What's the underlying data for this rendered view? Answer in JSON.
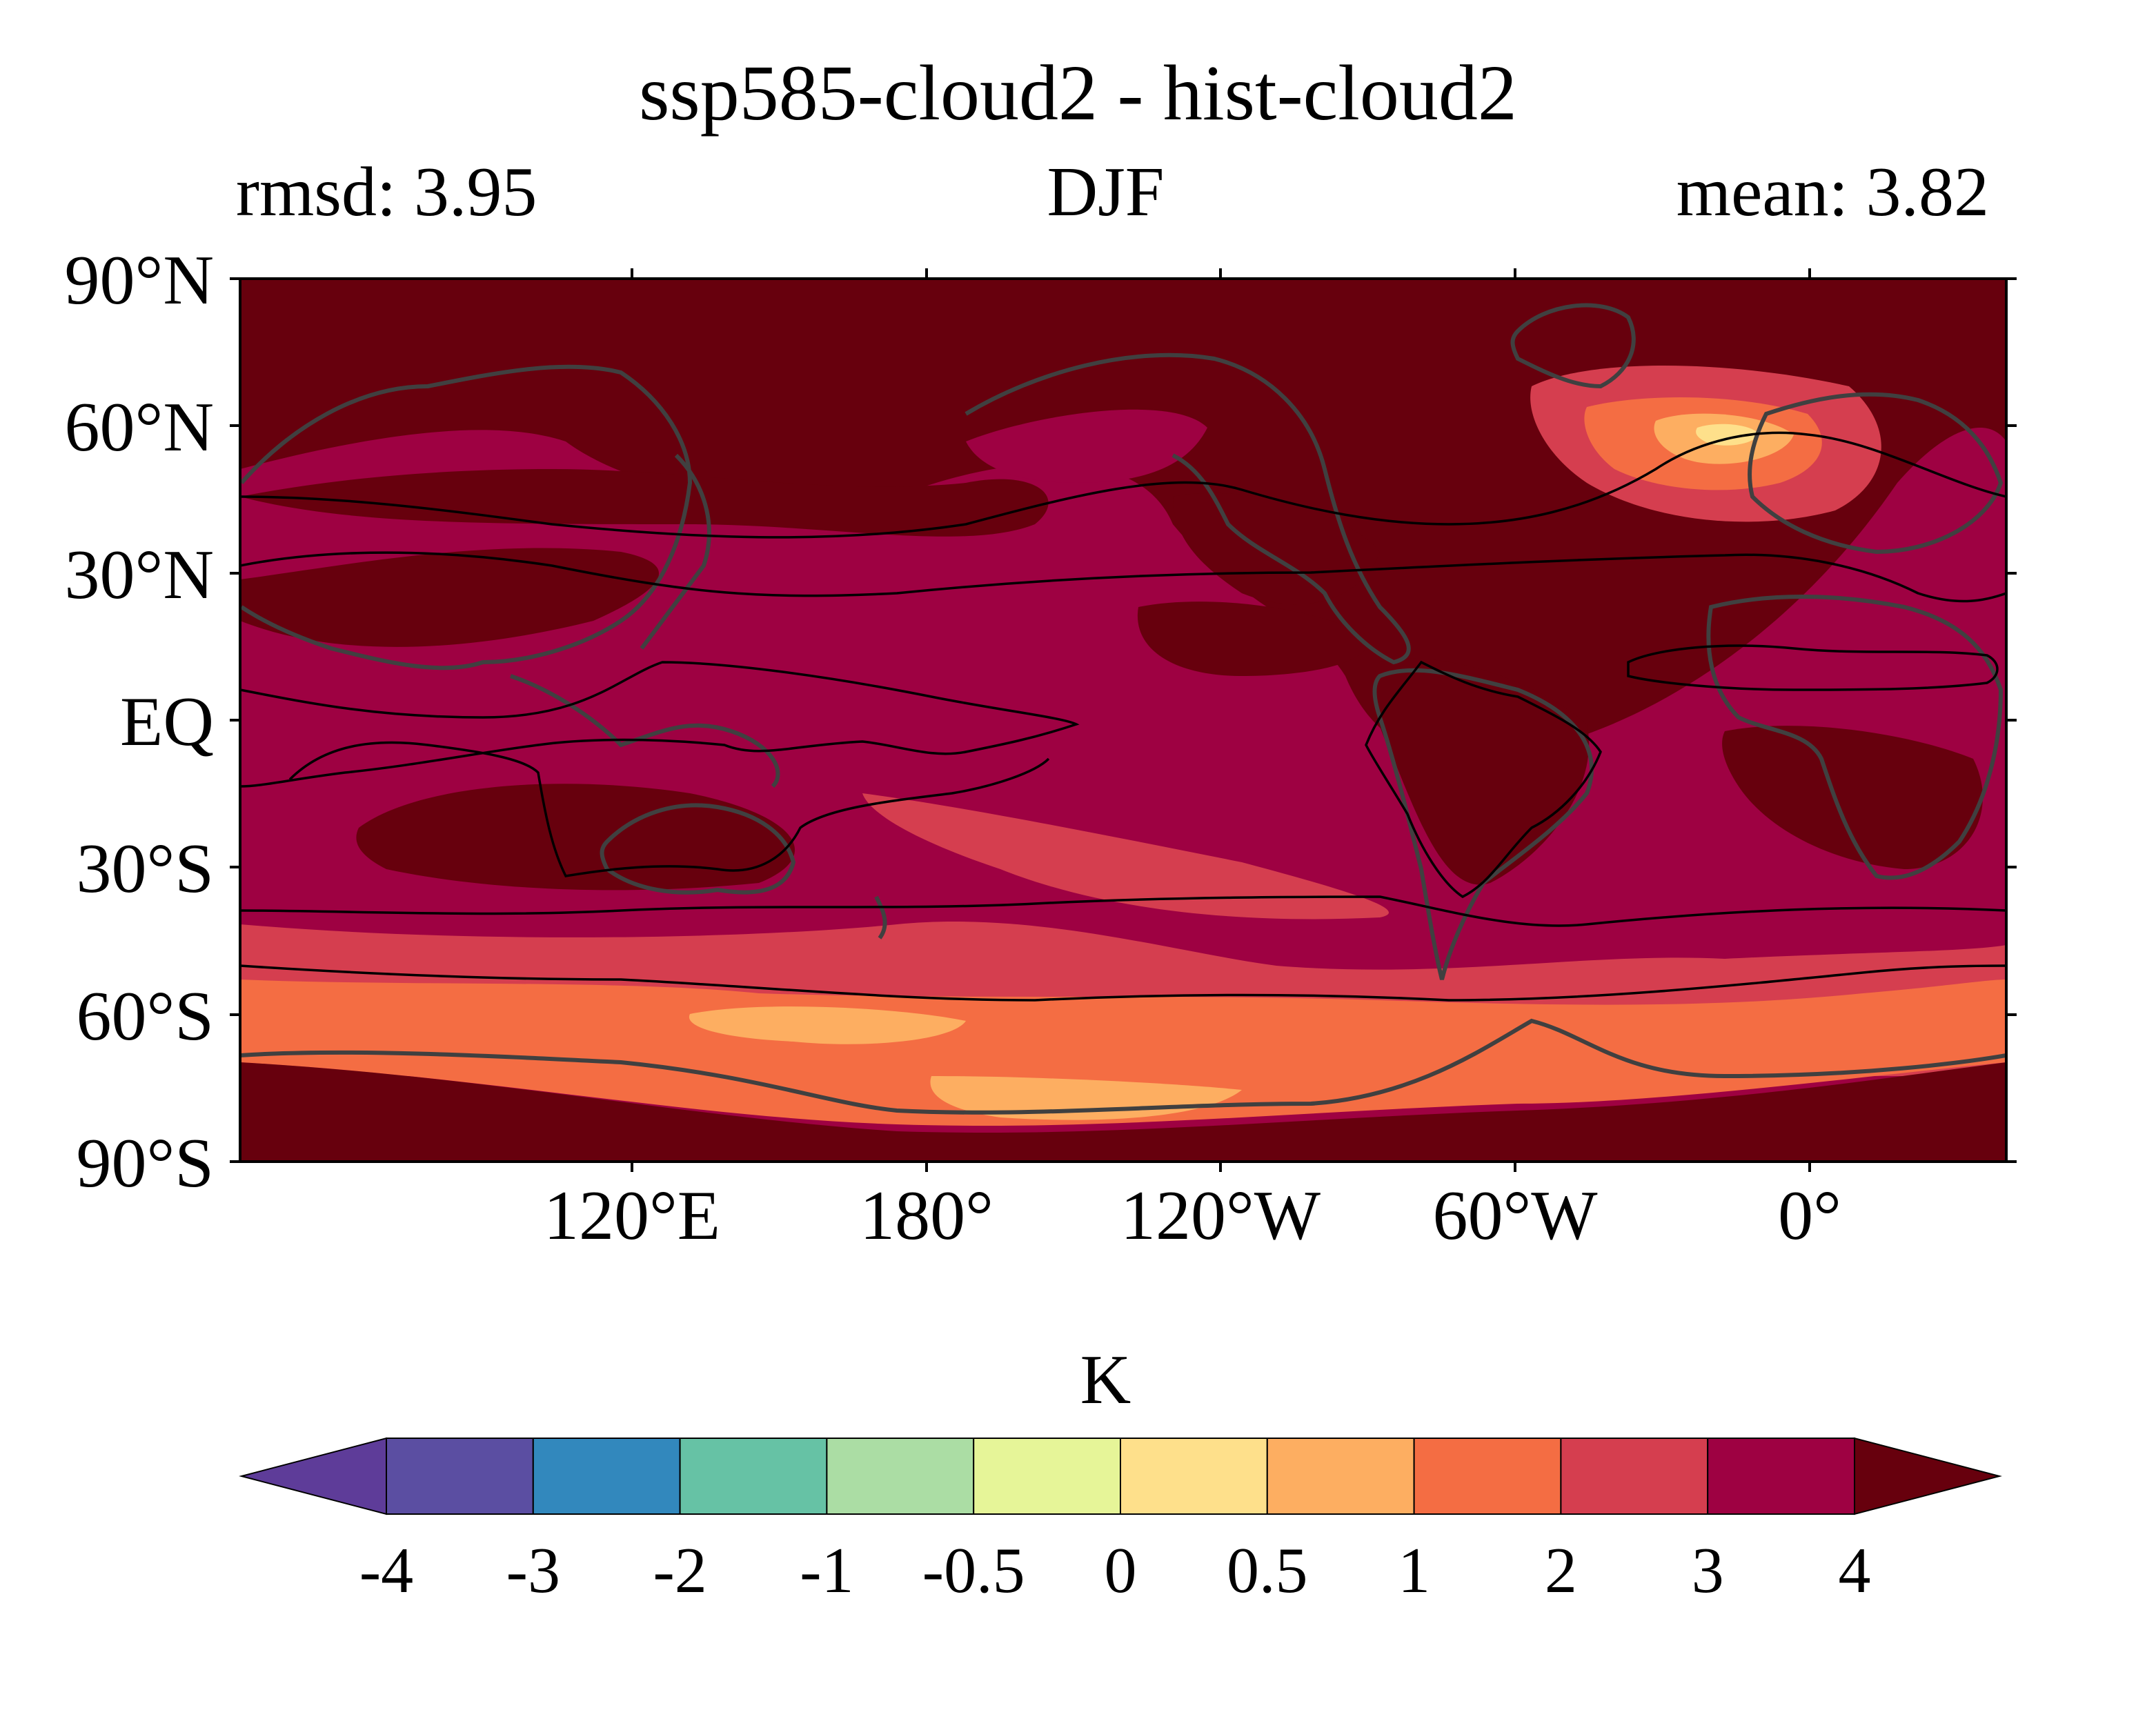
{
  "title": "ssp585-cloud2 - hist-cloud2",
  "subtitle_left": "rmsd: 3.95",
  "subtitle_center": "DJF",
  "subtitle_right": "mean: 3.82",
  "units": "K",
  "chart_data": {
    "type": "heatmap",
    "projection": "equirectangular",
    "central_longitude": 180,
    "lat_range": [
      -90,
      90
    ],
    "lat_ticks": [
      "90°N",
      "60°N",
      "30°N",
      "EQ",
      "30°S",
      "60°S",
      "90°S"
    ],
    "lon_ticks": [
      "120°E",
      "180°",
      "120°W",
      "60°W",
      "0°"
    ],
    "colorbar": {
      "label": "K",
      "levels": [
        "-4",
        "-3",
        "-2",
        "-1",
        "-0.5",
        "0",
        "0.5",
        "1",
        "2",
        "3",
        "4"
      ],
      "colors": [
        "#5e3c99",
        "#5b4ea2",
        "#3288bd",
        "#66c2a5",
        "#abdda4",
        "#e6f598",
        "#fee08b",
        "#fdae61",
        "#f46d43",
        "#d53e4f",
        "#9e0142",
        "#67000d"
      ],
      "extend": "both"
    },
    "field_description_levels_present": [
      "0.5",
      "1",
      "2",
      "3",
      "4"
    ]
  }
}
